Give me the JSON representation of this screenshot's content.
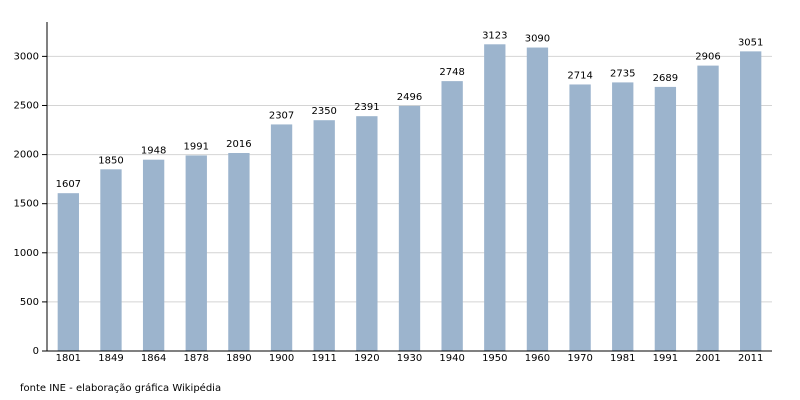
{
  "chart_data": {
    "type": "bar",
    "categories": [
      "1801",
      "1849",
      "1864",
      "1878",
      "1890",
      "1900",
      "1911",
      "1920",
      "1930",
      "1940",
      "1950",
      "1960",
      "1970",
      "1981",
      "1991",
      "2001",
      "2011"
    ],
    "values": [
      1607,
      1850,
      1948,
      1991,
      2016,
      2307,
      2350,
      2391,
      2496,
      2748,
      3123,
      3090,
      2714,
      2735,
      2689,
      2906,
      3051
    ],
    "color": "#9cb4cd",
    "ylim": [
      0,
      3350
    ],
    "yticks": [
      0,
      500,
      1000,
      1500,
      2000,
      2500,
      3000
    ],
    "grid": true,
    "source": "fonte INE - elaboração gráfica Wikipédia"
  }
}
